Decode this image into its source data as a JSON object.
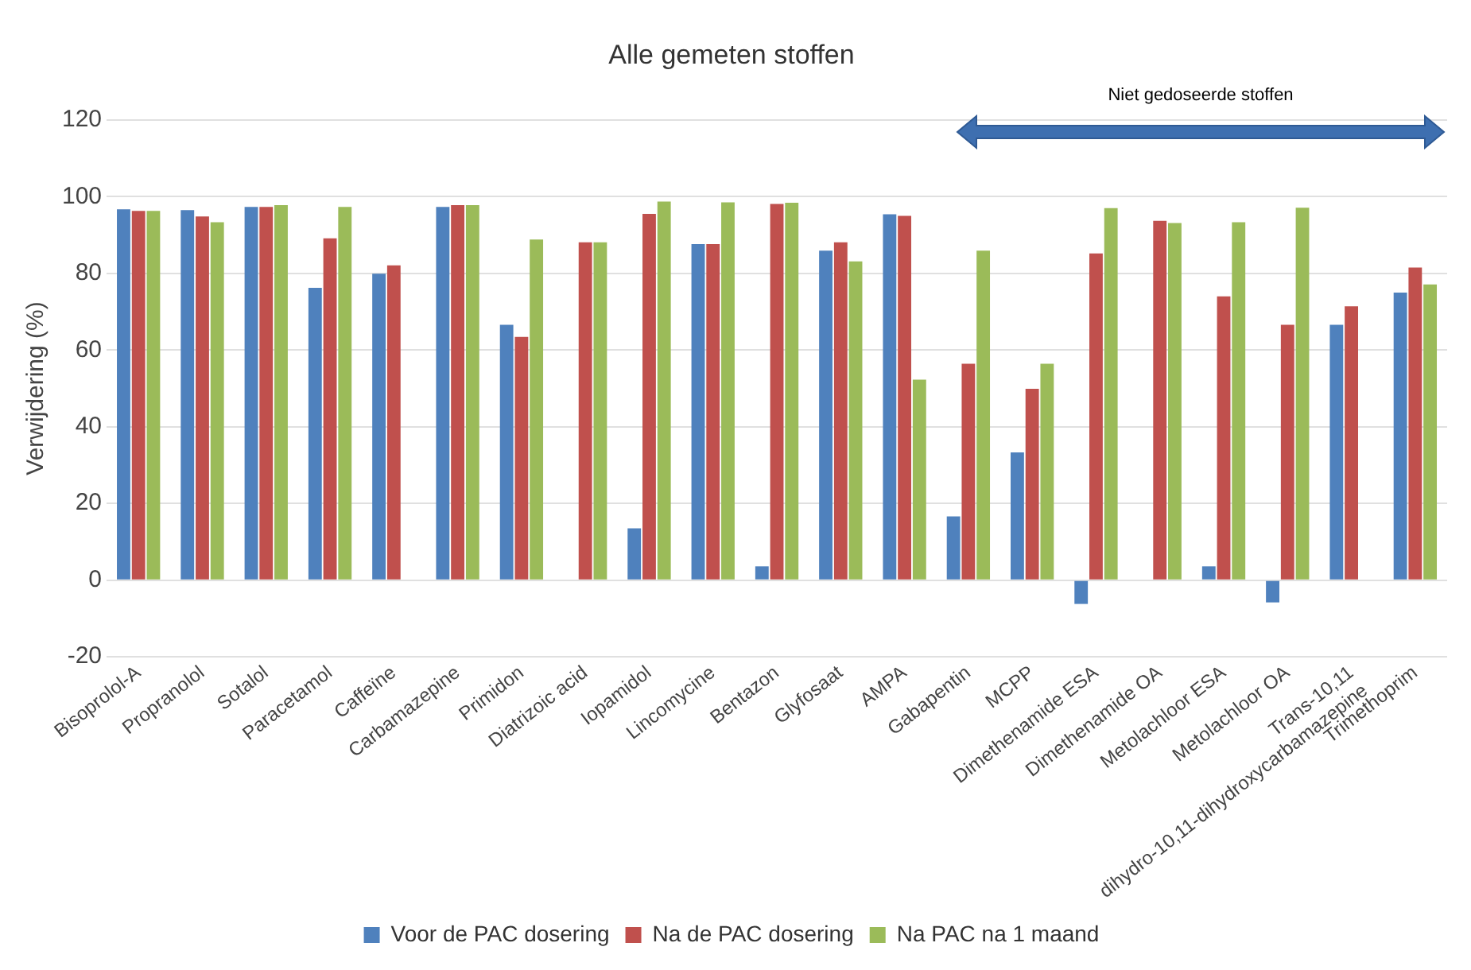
{
  "chart_data": {
    "type": "bar",
    "title": "Alle gemeten stoffen",
    "ylabel": "Verwijdering (%)",
    "categories": [
      "Bisoprolol-A",
      "Propranolol",
      "Sotalol",
      "Paracetamol",
      "Caffeïne",
      "Carbamazepine",
      "Primidon",
      "Diatrizoic acid",
      "Iopamidol",
      "Lincomycine",
      "Bentazon",
      "Glyfosaat",
      "AMPA",
      "Gabapentin",
      "MCPP",
      "Dimethenamide ESA",
      "Dimethenamide OA",
      "Metolachloor ESA",
      "Metolachloor OA",
      "Trans-10,11 dihydro-10,11-dihydroxycarbamazepine",
      "Trimethoprim"
    ],
    "series": [
      {
        "name": "Voor de PAC dosering",
        "color": "#4f81bd",
        "values": [
          96.7,
          96.5,
          97.3,
          76.2,
          79.9,
          97.3,
          66.6,
          null,
          13.5,
          87.6,
          3.6,
          85.9,
          95.4,
          16.6,
          33.3,
          -6.2,
          null,
          3.6,
          -5.8,
          66.6,
          75.0
        ]
      },
      {
        "name": "Na de PAC dosering",
        "color": "#c0504d",
        "values": [
          96.3,
          94.8,
          97.3,
          89.1,
          82.1,
          97.8,
          63.4,
          88.1,
          95.5,
          87.6,
          98.1,
          88.1,
          95.0,
          56.4,
          49.9,
          85.2,
          93.7,
          74.0,
          66.6,
          71.4,
          81.5
        ]
      },
      {
        "name": "Na PAC na 1 maand",
        "color": "#9bbb59",
        "values": [
          96.3,
          93.3,
          97.8,
          97.3,
          null,
          97.8,
          88.8,
          88.1,
          98.7,
          98.5,
          98.4,
          83.1,
          52.3,
          85.9,
          56.4,
          97.0,
          93.1,
          93.3,
          97.1,
          null,
          77.1
        ]
      }
    ],
    "ylim": [
      -20,
      120
    ],
    "yticks": [
      -20,
      0,
      20,
      40,
      60,
      80,
      100,
      120
    ],
    "grid": "y",
    "legend": "bottom",
    "annotations": [
      "Niet gedoseerde stoffen"
    ]
  }
}
